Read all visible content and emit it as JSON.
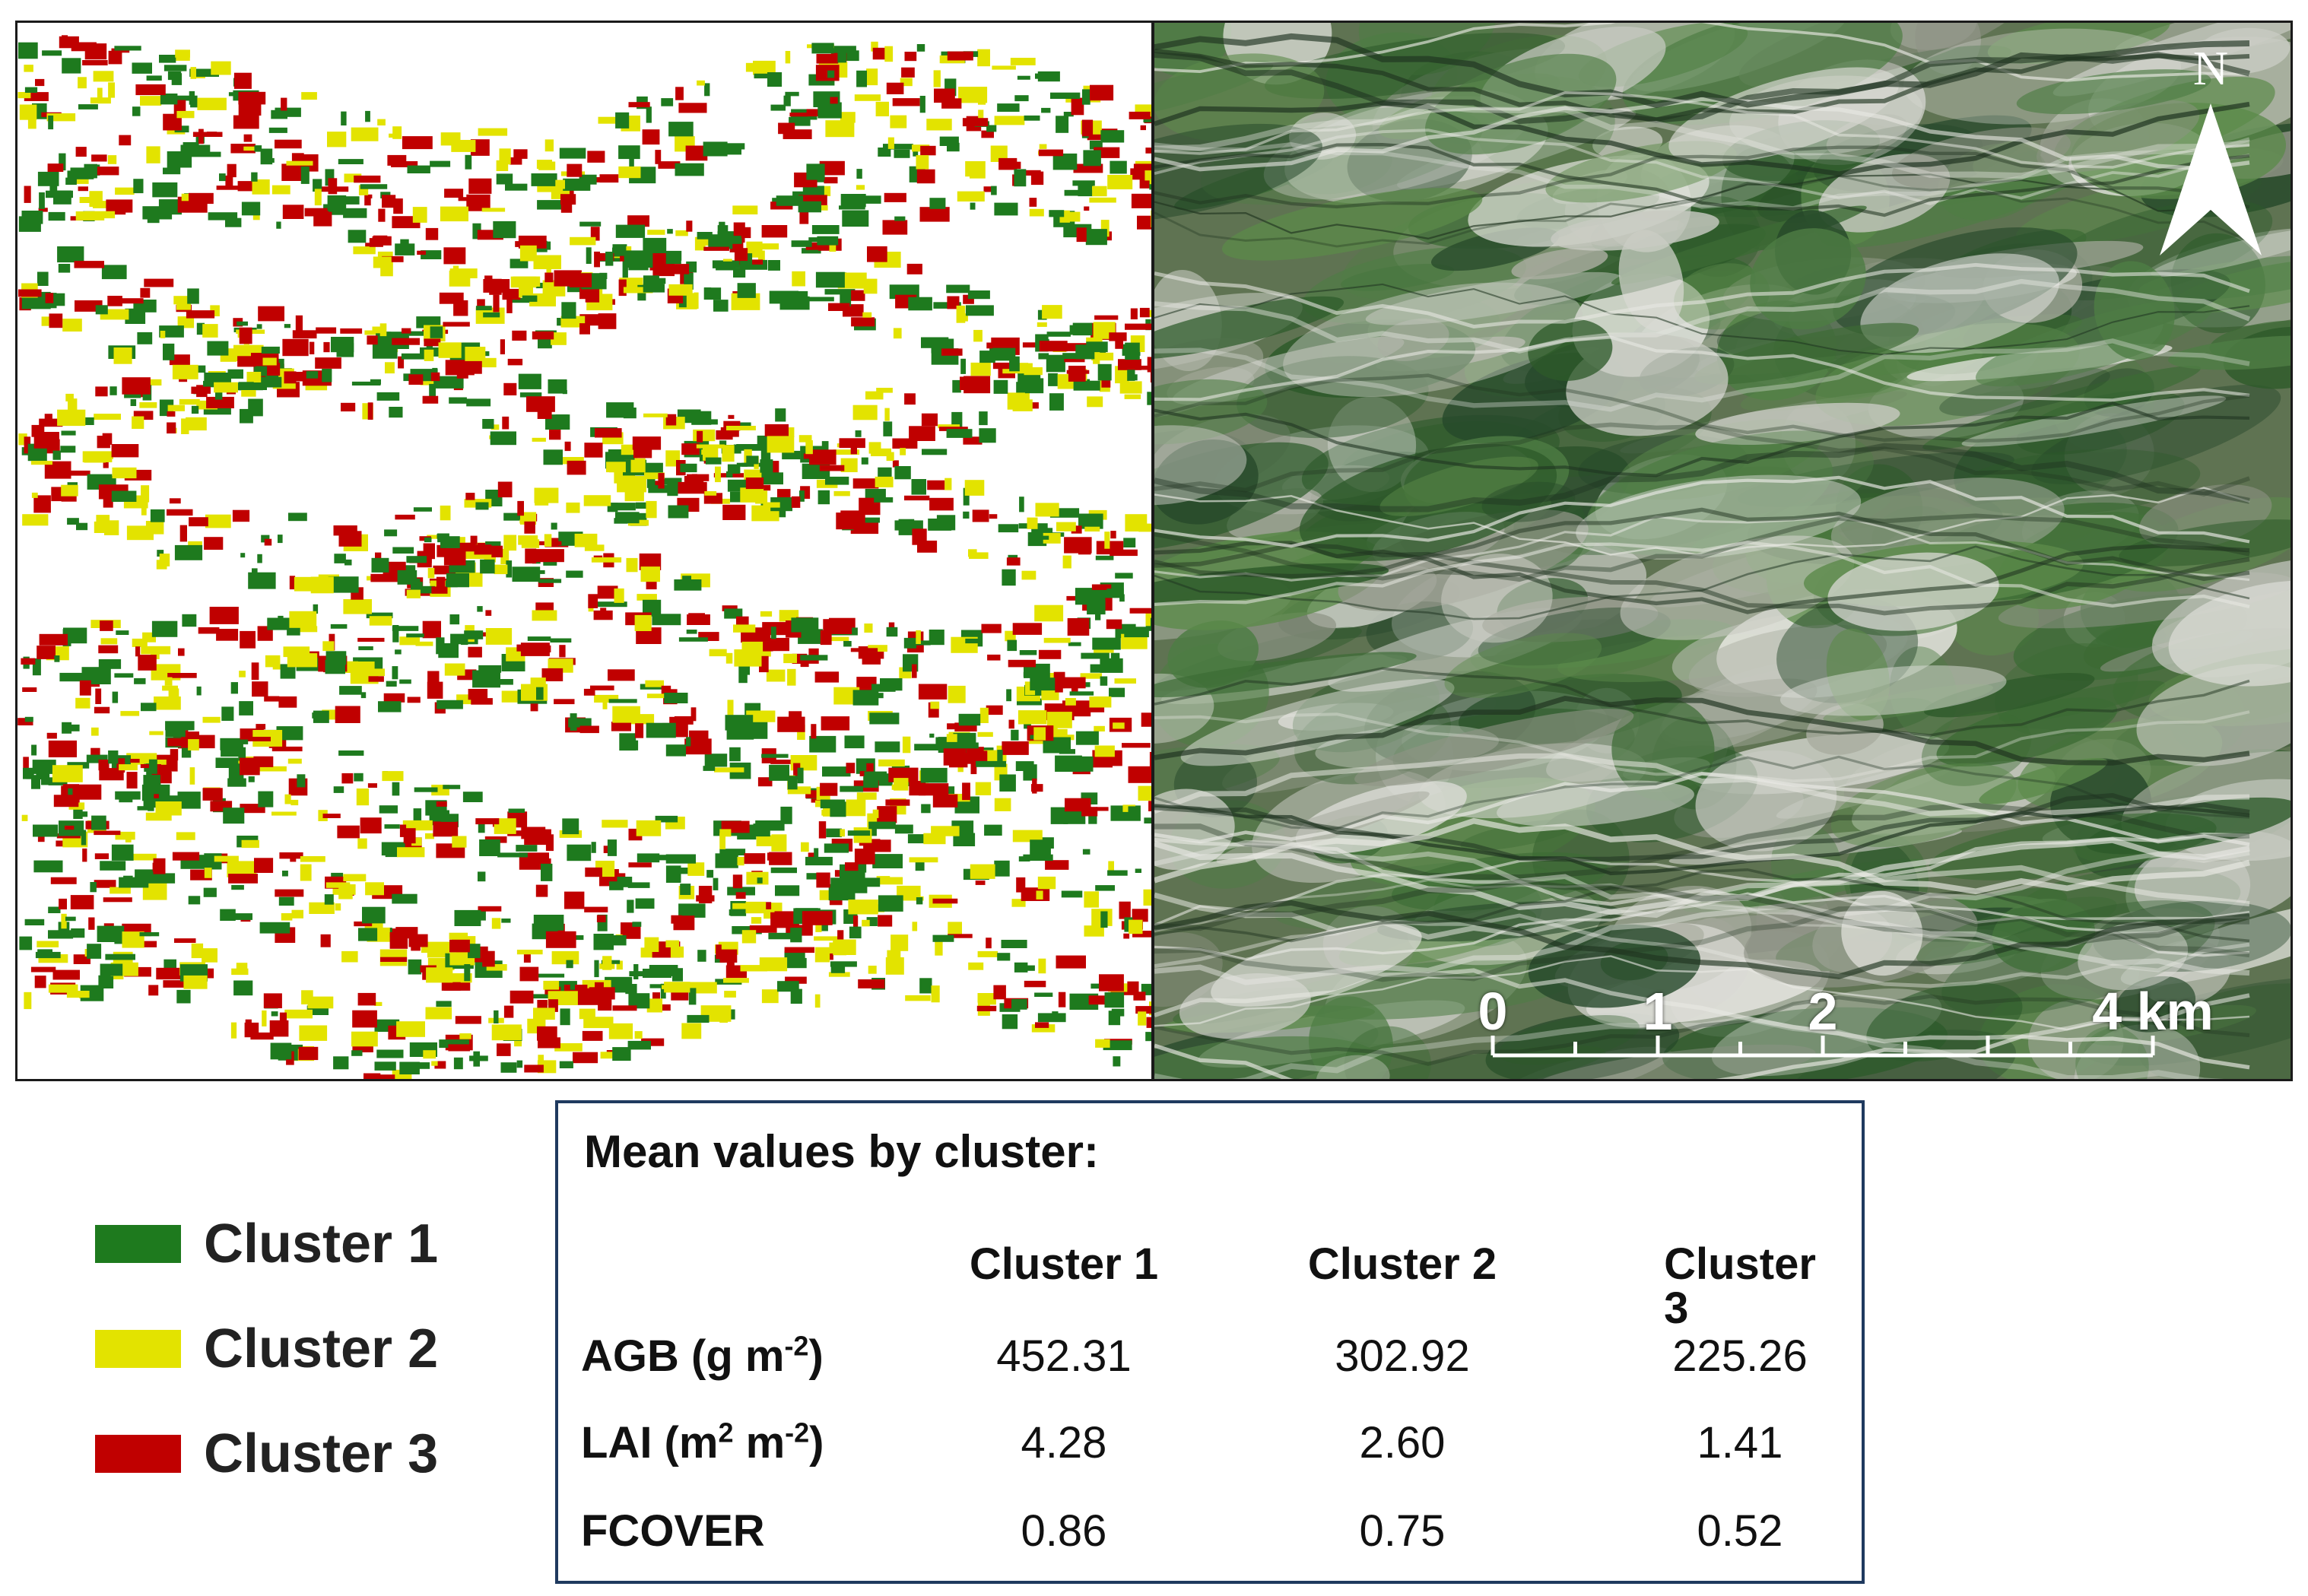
{
  "map_panels": {
    "left": {
      "title": ""
    },
    "right": {
      "north_label": "N",
      "scale_bar": {
        "labels": [
          "0",
          "1",
          "2",
          "4 km"
        ],
        "values": [
          0,
          1,
          2,
          4
        ],
        "unit": "km"
      }
    }
  },
  "legend": {
    "items": [
      {
        "label": "Cluster 1",
        "color": "#1e7a1e"
      },
      {
        "label": "Cluster 2",
        "color": "#e3e300"
      },
      {
        "label": "Cluster 3",
        "color": "#c00000"
      }
    ]
  },
  "stats_table": {
    "title": "Mean values by cluster:",
    "columns": [
      "Cluster 1",
      "Cluster 2",
      "Cluster 3"
    ],
    "rows": [
      {
        "label_main": "AGB (g m",
        "label_sup": "-2",
        "label_end": ")",
        "values": [
          "452.31",
          "302.92",
          "225.26"
        ]
      },
      {
        "label_main": "LAI (m",
        "label_sup": "2",
        "label_mid": " m",
        "label_sup2": "-2",
        "label_end": ")",
        "values": [
          "4.28",
          "2.60",
          "1.41"
        ]
      },
      {
        "label_main": "FCOVER",
        "values": [
          "0.86",
          "0.75",
          "0.52"
        ]
      }
    ]
  },
  "colors": {
    "cluster1": "#1e7a1e",
    "cluster2": "#e3e300",
    "cluster3": "#c00000",
    "box_border": "#1f3a5f"
  }
}
